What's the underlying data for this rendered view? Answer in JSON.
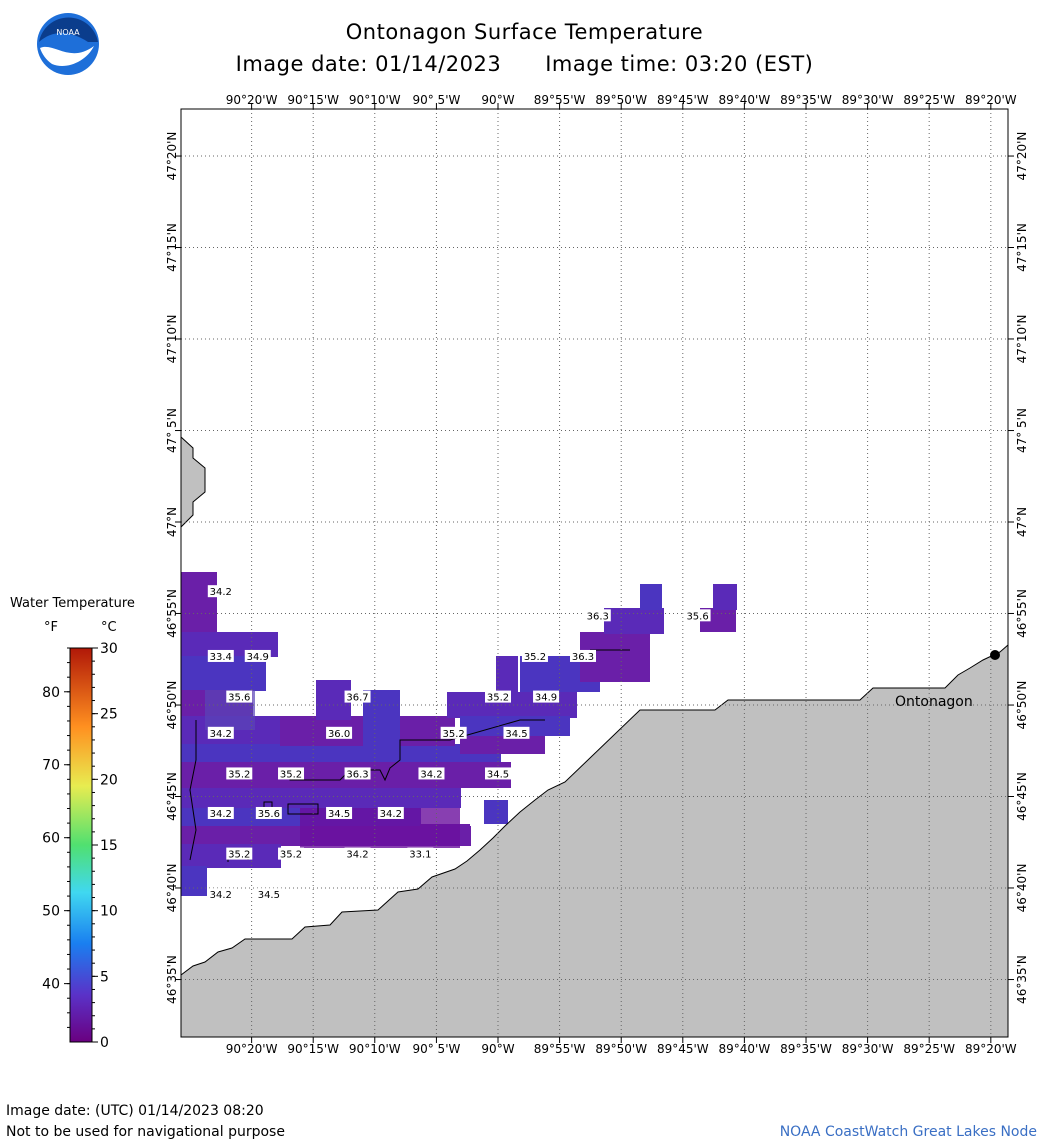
{
  "title": "Ontonagon Surface Temperature",
  "image_date_label": "Image date: 01/14/2023",
  "image_time_label": "Image time: 03:20 (EST)",
  "colors": {
    "land": "#c0c0c0",
    "water_cold": "#6a1fa8",
    "grid": "#666666"
  },
  "map": {
    "lon_labels": [
      "90°20'W",
      "90°15'W",
      "90°10'W",
      "90° 5'W",
      "90°W",
      "89°55'W",
      "89°50'W",
      "89°45'W",
      "89°40'W",
      "89°35'W",
      "89°30'W",
      "89°25'W",
      "89°20'W"
    ],
    "lat_labels": [
      "47°20'N",
      "47°15'N",
      "47°10'N",
      "47° 5'N",
      "47°N",
      "46°55'N",
      "46°50'N",
      "46°45'N",
      "46°40'N",
      "46°35'N"
    ],
    "city_label": "Ontonagon",
    "readings": [
      {
        "v": "34.2",
        "lon": -90.375,
        "lat": 46.937
      },
      {
        "v": "33.4",
        "lon": -90.375,
        "lat": 46.878
      },
      {
        "v": "34.9",
        "lon": -90.325,
        "lat": 46.878
      },
      {
        "v": "35.6",
        "lon": -90.35,
        "lat": 46.841
      },
      {
        "v": "36.7",
        "lon": -90.19,
        "lat": 46.841
      },
      {
        "v": "34.2",
        "lon": -90.375,
        "lat": 46.808
      },
      {
        "v": "36.0",
        "lon": -90.215,
        "lat": 46.808
      },
      {
        "v": "35.2",
        "lon": -90.06,
        "lat": 46.808
      },
      {
        "v": "34.5",
        "lon": -89.975,
        "lat": 46.808
      },
      {
        "v": "35.2",
        "lon": -90.35,
        "lat": 46.771
      },
      {
        "v": "35.2",
        "lon": -90.28,
        "lat": 46.771
      },
      {
        "v": "36.3",
        "lon": -90.19,
        "lat": 46.771
      },
      {
        "v": "34.2",
        "lon": -90.09,
        "lat": 46.771
      },
      {
        "v": "34.5",
        "lon": -90.0,
        "lat": 46.771
      },
      {
        "v": "34.2",
        "lon": -90.375,
        "lat": 46.735
      },
      {
        "v": "35.6",
        "lon": -90.31,
        "lat": 46.735
      },
      {
        "v": "34.5",
        "lon": -90.215,
        "lat": 46.735
      },
      {
        "v": "34.2",
        "lon": -90.145,
        "lat": 46.735
      },
      {
        "v": "35.2",
        "lon": -90.35,
        "lat": 46.698
      },
      {
        "v": "35.2",
        "lon": -90.28,
        "lat": 46.698
      },
      {
        "v": "34.2",
        "lon": -90.19,
        "lat": 46.698
      },
      {
        "v": "33.1",
        "lon": -90.105,
        "lat": 46.698
      },
      {
        "v": "34.2",
        "lon": -90.375,
        "lat": 46.661
      },
      {
        "v": "34.5",
        "lon": -90.31,
        "lat": 46.661
      },
      {
        "v": "35.2",
        "lon": -89.95,
        "lat": 46.878
      },
      {
        "v": "35.2",
        "lon": -90.0,
        "lat": 46.841
      },
      {
        "v": "34.9",
        "lon": -89.935,
        "lat": 46.841
      },
      {
        "v": "36.3",
        "lon": -89.865,
        "lat": 46.915
      },
      {
        "v": "36.3",
        "lon": -89.885,
        "lat": 46.878
      },
      {
        "v": "35.6",
        "lon": -89.73,
        "lat": 46.915
      }
    ]
  },
  "legend": {
    "title": "Water Temperature",
    "unit_f": "°F",
    "unit_c": "°C",
    "f_ticks": [
      {
        "v": "80",
        "t": 80
      },
      {
        "v": "70",
        "t": 70
      },
      {
        "v": "60",
        "t": 60
      },
      {
        "v": "50",
        "t": 50
      },
      {
        "v": "40",
        "t": 40
      }
    ],
    "c_ticks": [
      {
        "v": "30",
        "t": 30
      },
      {
        "v": "25",
        "t": 25
      },
      {
        "v": "20",
        "t": 20
      },
      {
        "v": "15",
        "t": 15
      },
      {
        "v": "10",
        "t": 10
      },
      {
        "v": "5",
        "t": 5
      },
      {
        "v": "0",
        "t": 0
      }
    ],
    "range_c": [
      0,
      30
    ]
  },
  "footer": {
    "utc_label": "Image date: (UTC) 01/14/2023  08:20",
    "disclaimer": "Not to be used for navigational purpose",
    "credit": "NOAA CoastWatch Great Lakes Node"
  }
}
